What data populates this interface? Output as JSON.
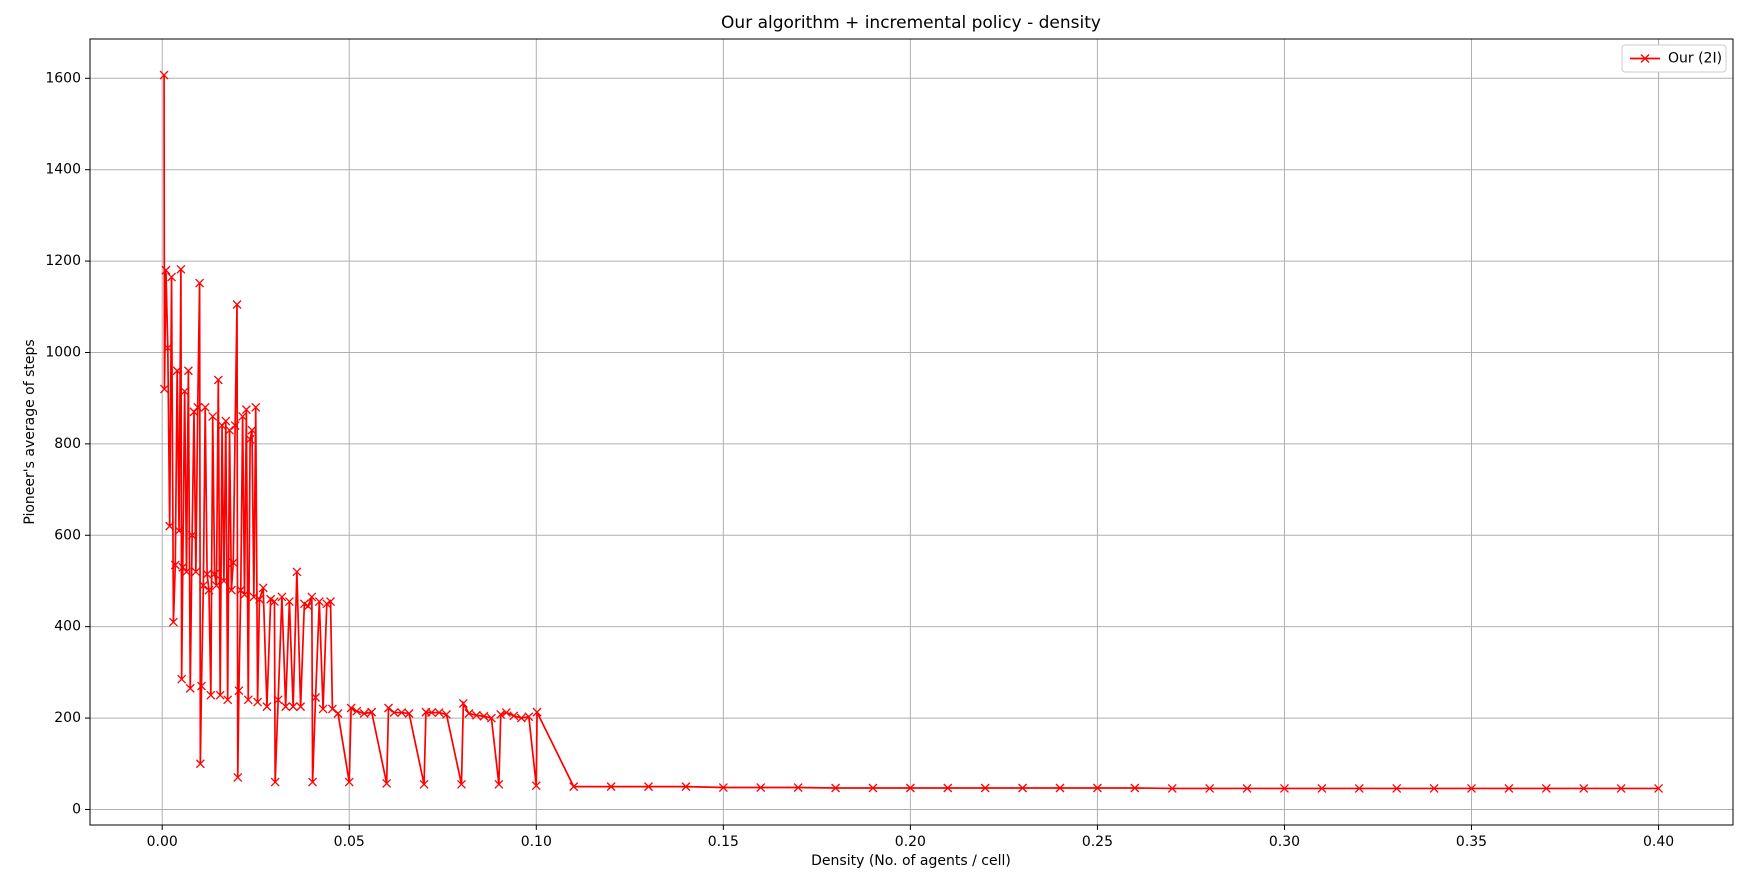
{
  "chart_data": {
    "type": "line",
    "title": "Our algorithm + incremental policy - density",
    "xlabel": "Density (No. of agents / cell)",
    "ylabel": "Pioneer's average of steps",
    "x": [
      0.0005,
      0.0006,
      0.001,
      0.0015,
      0.002,
      0.0025,
      0.003,
      0.0035,
      0.004,
      0.0045,
      0.005,
      0.0052,
      0.0055,
      0.006,
      0.0065,
      0.007,
      0.0075,
      0.008,
      0.0085,
      0.009,
      0.0095,
      0.01,
      0.0102,
      0.0105,
      0.011,
      0.0115,
      0.012,
      0.0125,
      0.013,
      0.0135,
      0.014,
      0.0145,
      0.015,
      0.0155,
      0.016,
      0.0165,
      0.017,
      0.0175,
      0.018,
      0.0185,
      0.019,
      0.0195,
      0.02,
      0.0202,
      0.0205,
      0.021,
      0.0215,
      0.022,
      0.0225,
      0.023,
      0.0235,
      0.024,
      0.0245,
      0.025,
      0.0255,
      0.026,
      0.027,
      0.028,
      0.029,
      0.03,
      0.0302,
      0.031,
      0.032,
      0.033,
      0.034,
      0.035,
      0.036,
      0.037,
      0.038,
      0.039,
      0.04,
      0.0402,
      0.041,
      0.042,
      0.043,
      0.044,
      0.045,
      0.0455,
      0.047,
      0.05,
      0.0505,
      0.052,
      0.054,
      0.056,
      0.06,
      0.0605,
      0.062,
      0.064,
      0.066,
      0.07,
      0.0705,
      0.072,
      0.074,
      0.076,
      0.08,
      0.0805,
      0.082,
      0.084,
      0.086,
      0.088,
      0.09,
      0.0905,
      0.092,
      0.094,
      0.096,
      0.098,
      0.1,
      0.1002,
      0.11,
      0.12,
      0.13,
      0.14,
      0.15,
      0.16,
      0.17,
      0.18,
      0.19,
      0.2,
      0.21,
      0.22,
      0.23,
      0.24,
      0.25,
      0.26,
      0.27,
      0.28,
      0.29,
      0.3,
      0.31,
      0.32,
      0.33,
      0.34,
      0.35,
      0.36,
      0.37,
      0.38,
      0.39,
      0.4
    ],
    "series": [
      {
        "name": "Our (2I)",
        "color": "#ff0000",
        "values": [
          1607,
          920,
          1180,
          1010,
          620,
          1165,
          410,
          535,
          960,
          610,
          1182,
          285,
          530,
          915,
          520,
          960,
          265,
          600,
          870,
          520,
          880,
          1152,
          100,
          270,
          490,
          880,
          515,
          480,
          250,
          860,
          515,
          490,
          940,
          250,
          840,
          500,
          850,
          240,
          830,
          480,
          540,
          840,
          1105,
          70,
          260,
          480,
          860,
          470,
          875,
          240,
          810,
          830,
          465,
          880,
          235,
          460,
          485,
          225,
          460,
          455,
          60,
          240,
          465,
          225,
          455,
          225,
          520,
          225,
          450,
          445,
          465,
          60,
          245,
          455,
          220,
          450,
          455,
          220,
          210,
          60,
          222,
          215,
          210,
          213,
          57,
          222,
          212,
          212,
          210,
          55,
          213,
          212,
          212,
          208,
          55,
          232,
          210,
          206,
          204,
          200,
          55,
          208,
          212,
          205,
          200,
          203,
          52,
          213,
          50,
          50,
          50,
          50,
          48,
          48,
          48,
          47,
          47,
          47,
          47,
          47,
          47,
          47,
          47,
          47,
          46,
          46,
          46,
          46,
          46,
          46,
          46,
          46,
          46,
          46,
          46,
          46,
          46,
          46
        ]
      }
    ],
    "xlim": [
      -0.0193,
      0.4199
    ],
    "ylim": [
      -34,
      1686
    ],
    "xticks": [
      {
        "value": 0,
        "label": "0.00"
      },
      {
        "value": 0.05,
        "label": "0.05"
      },
      {
        "value": 0.1,
        "label": "0.10"
      },
      {
        "value": 0.15,
        "label": "0.15"
      },
      {
        "value": 0.2,
        "label": "0.20"
      },
      {
        "value": 0.25,
        "label": "0.25"
      },
      {
        "value": 0.3,
        "label": "0.30"
      },
      {
        "value": 0.35,
        "label": "0.35"
      },
      {
        "value": 0.4,
        "label": "0.40"
      }
    ],
    "yticks": [
      0,
      200,
      400,
      600,
      800,
      1000,
      1200,
      1400,
      1600
    ],
    "grid": true,
    "legend": "upper right"
  }
}
